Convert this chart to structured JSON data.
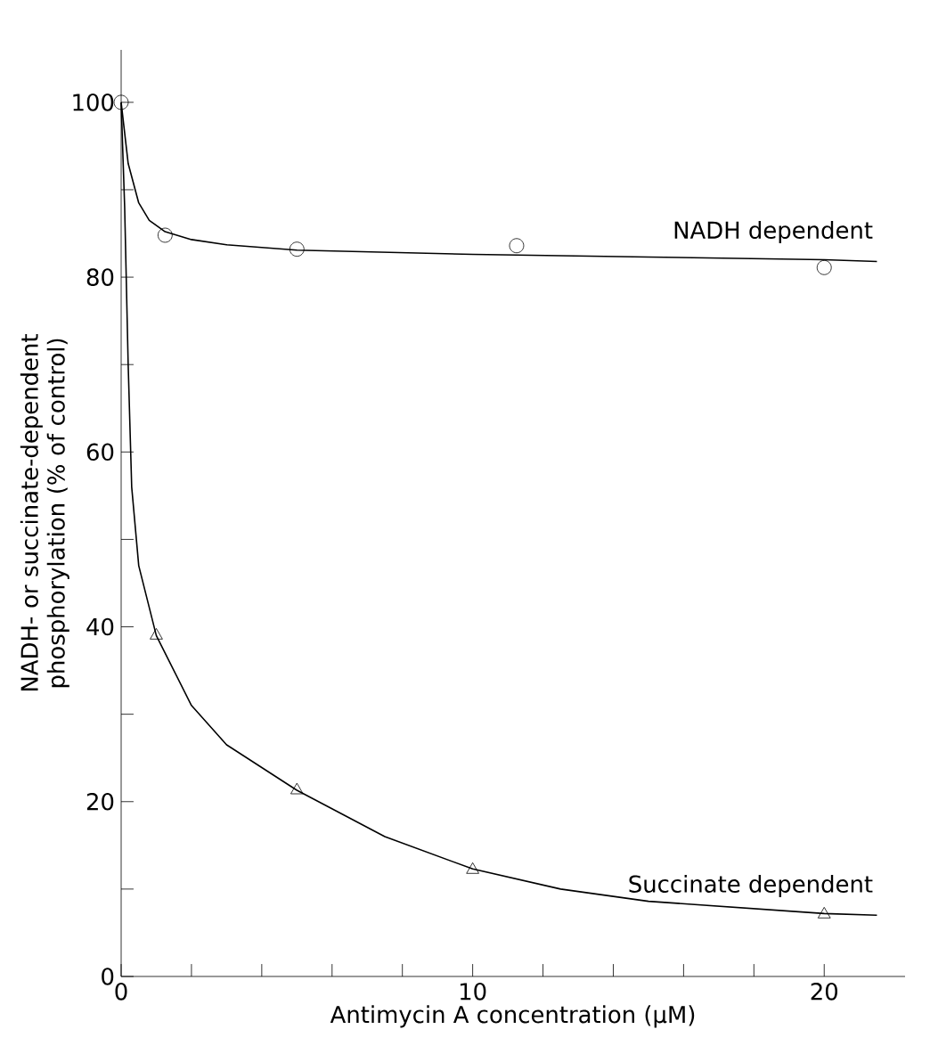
{
  "chart_data": {
    "type": "scatter",
    "xlabel": "Antimycin A concentration (µM)",
    "ylabel": "NADH- or succinate-dependent phosphorylation (% of control)",
    "xlim": [
      0,
      22.3
    ],
    "ylim": [
      0,
      106
    ],
    "xticks": [
      0,
      {
        "value": 2,
        "label": null
      },
      {
        "value": 4,
        "label": null
      },
      {
        "value": 6,
        "label": null
      },
      {
        "value": 8,
        "label": null
      },
      10,
      {
        "value": 12,
        "label": null
      },
      {
        "value": 14,
        "label": null
      },
      {
        "value": 16,
        "label": null
      },
      {
        "value": 18,
        "label": null
      },
      20
    ],
    "yticks": [
      0,
      {
        "value": 10,
        "label": null
      },
      20,
      {
        "value": 30,
        "label": null
      },
      40,
      {
        "value": 50,
        "label": null
      },
      60,
      {
        "value": 70,
        "label": null
      },
      80,
      {
        "value": 90,
        "label": null
      },
      100
    ],
    "grid": false,
    "legend": false,
    "series": [
      {
        "marker": "circle",
        "color": "#000000",
        "x": [
          0,
          1.25,
          5,
          11.25,
          20
        ],
        "values": [
          100,
          84.8,
          83.2,
          83.6,
          81.1
        ]
      },
      {
        "type": "line",
        "marker": "none",
        "name": "NADH dependent",
        "color": "#000000",
        "x": [
          0,
          0.2,
          0.5,
          0.8,
          1.25,
          2,
          3,
          5,
          10,
          15,
          20,
          21.5
        ],
        "values": [
          100,
          93,
          88.5,
          86.5,
          85.2,
          84.3,
          83.7,
          83.1,
          82.6,
          82.3,
          82,
          81.8
        ]
      },
      {
        "marker": "triangle",
        "color": "#000000",
        "x": [
          1,
          5,
          10,
          20
        ],
        "values": [
          39,
          21.3,
          12.2,
          7.1
        ]
      },
      {
        "type": "line",
        "marker": "none",
        "name": "Succinate dependent",
        "color": "#000000",
        "x": [
          0,
          0.1,
          0.2,
          0.3,
          0.5,
          1,
          2,
          3,
          5,
          7.5,
          10,
          12.5,
          15,
          20,
          21.5
        ],
        "values": [
          100,
          88,
          70,
          56,
          47,
          39,
          31,
          26.5,
          21.3,
          16,
          12.3,
          10,
          8.6,
          7.2,
          7
        ]
      }
    ]
  }
}
